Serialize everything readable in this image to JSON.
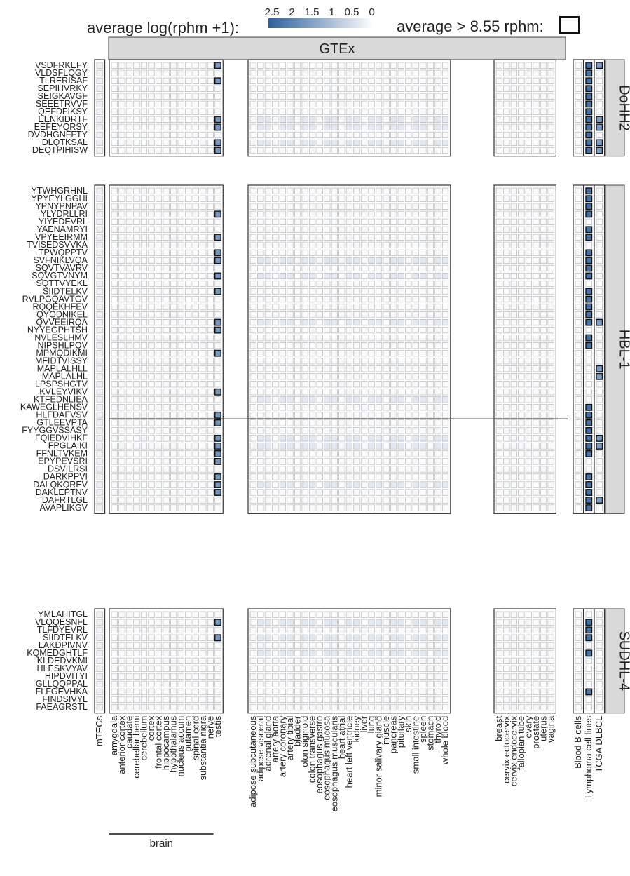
{
  "chart_data": {
    "type": "heatmap",
    "legend": {
      "title": "average  log(rphm +1):",
      "ticks": [
        "2.5",
        "2",
        "1.5",
        "1",
        "0.5",
        "0"
      ],
      "scale_min": 0,
      "scale_max": 2.6,
      "color_low": "#ffffff",
      "color_high": "#2e5f9c",
      "threshold_label": "average > 8.55 rphm:"
    },
    "strip_top": "GTEx",
    "brain_label": "brain",
    "column_groups": [
      {
        "key": "mtec",
        "columns": [
          "mTECs"
        ]
      },
      {
        "key": "brain",
        "columns": [
          "amygdala",
          "anterior cortex",
          "caudate",
          "cerebellar hemi",
          "cerebellum",
          "cortex",
          "frontal cortex",
          "hippocampus",
          "hypothalamus",
          "nucleus accum",
          "putamen",
          "spinal cord",
          "substantia nigra",
          "nerve",
          "testis"
        ]
      },
      {
        "key": "tissue",
        "columns": [
          "adipose subcutaneous",
          "adipose visceral",
          "adrenal gland",
          "artery aorta",
          "artery coronary",
          "artery tibial",
          "bladder",
          "olon sigmoid",
          "colon transverse",
          "eosophagus gastro",
          "eosophagus mucosa",
          "eosophagus muscularis",
          "heart atrial",
          "heart left ventricle",
          "kidney",
          "liver",
          "lung",
          "minor salivary gland",
          "muscle",
          "pancreas",
          "pituitary",
          "skin",
          "small intestine",
          "spleen",
          "stomach",
          "thyroid",
          "whole blood"
        ]
      },
      {
        "key": "female",
        "columns": [
          "breast",
          "cervix ectocervix",
          "cervix endocervix",
          "fallopian tube",
          "ovary",
          "prostate",
          "uterus",
          "vagina"
        ]
      },
      {
        "key": "blood",
        "columns": [
          "Blood B cells"
        ]
      },
      {
        "key": "lines",
        "columns": [
          "Lymphoma cell lines"
        ]
      },
      {
        "key": "tcga",
        "columns": [
          "TCGA DLBCL"
        ]
      }
    ],
    "row_groups": [
      {
        "label": "DoHH2",
        "rows": [
          "VSDFRKEFY",
          "VLDSFLQGY",
          "TLRERISAF",
          "SEPIHVRKY",
          "SEIGKAVGF",
          "SEEETRVVF",
          "QEFDFIKSY",
          "EENKIDRTF",
          "EEFEYQRSY",
          "DVDHGNFFTY",
          "DLQTKSAL",
          "DEQTPIHISW"
        ],
        "testis_high": [
          "VSDFRKEFY",
          "TLRERISAF",
          "EENKIDRTF",
          "EEFEYQRSY",
          "DLQTKSAL",
          "DEQTPIHISW"
        ],
        "lines_high": [
          "VSDFRKEFY",
          "VLDSFLQGY",
          "TLRERISAF",
          "SEPIHVRKY",
          "SEIGKAVGF",
          "SEEETRVVF",
          "QEFDFIKSY",
          "EENKIDRTF",
          "EEFEYQRSY",
          "DVDHGNFFTY",
          "DLQTKSAL",
          "DEQTPIHISW"
        ],
        "tcga_high": [
          "VSDFRKEFY",
          "EENKIDRTF",
          "EEFEYQRSY",
          "DLQTKSAL",
          "DEQTPIHISW"
        ],
        "tissue_mid": [
          "EENKIDRTF",
          "EEFEYQRSY",
          "DLQTKSAL"
        ]
      },
      {
        "label": "HBL-1",
        "rows": [
          "YTWHGRHNL",
          "YPYEYLGGHI",
          "YPNYPNPAV",
          "YLYDRLLRI",
          "YIYEDEVRL",
          "YAENAMRYI",
          "VPYEEIRMM",
          "TVISEDSVVKA",
          "TPWQPPTV",
          "SVFNIKLVQA",
          "SQVTVAVRV",
          "SQVGTVNYM",
          "SQTTVYEKL",
          "SIIDTELKV",
          "RVLPGQAVTGV",
          "RQQEKHFEV",
          "QYQDNIKEL",
          "QVVEEIRQA",
          "NYYEGPHTSH",
          "NVLESLHMV",
          "NIPSHLPQV",
          "MPMQDIKMI",
          "MFIDTVISSY",
          "MAPLALHLL",
          "MAPLALHL",
          "LPSPSHGTV",
          "KVLEYVIKV",
          "KTFEDNLIEA",
          "KAWEGLHENSV",
          "HLFDAFVSV",
          "GTLEEVPTA",
          "FYYGGVSSASY",
          "FQIEDVIHKF",
          "FPGLAIKI",
          "FFNLTVKEM",
          "EPYPEVSRI",
          "DSVILRSI",
          "DARKPPVI",
          "DALQKQREV",
          "DAKLEPTNV",
          "DAFRTLGL",
          "AVAPLIKGV"
        ],
        "testis_high": [
          "YLYDRLLRI",
          "VPYEEIRMM",
          "TPWQPPTV",
          "SVFNIKLVQA",
          "SQVGTVNYM",
          "SIIDTELKV",
          "QVVEEIRQA",
          "NYYEGPHTSH",
          "MPMQDIKMI",
          "KVLEYVIKV",
          "HLFDAFVSV",
          "GTLEEVPTA",
          "FQIEDVIHKF",
          "FPGLAIKI",
          "FFNLTVKEM",
          "EPYPEVSRI",
          "DARKPPVI",
          "DALQKQREV",
          "DAKLEPTNV"
        ],
        "lines_high": [
          "YTWHGRHNL",
          "YPYEYLGGHI",
          "YPNYPNPAV",
          "YLYDRLLRI",
          "YAENAMRYI",
          "VPYEEIRMM",
          "TPWQPPTV",
          "SVFNIKLVQA",
          "SQVTVAVRV",
          "SQVGTVNYM",
          "SIIDTELKV",
          "RVLPGQAVTGV",
          "RQQEKHFEV",
          "QYQDNIKEL",
          "QVVEEIRQA",
          "NVLESLHMV",
          "NIPSHLPQV",
          "KAWEGLHENSV",
          "HLFDAFVSV",
          "GTLEEVPTA",
          "FYYGGVSSASY",
          "FQIEDVIHKF",
          "FPGLAIKI",
          "FFNLTVKEM",
          "DARKPPVI",
          "DALQKQREV",
          "DAKLEPTNV",
          "DAFRTLGL",
          "AVAPLIKGV"
        ],
        "tcga_high": [
          "QVVEEIRQA",
          "MAPLALHLL",
          "MAPLALHL",
          "FQIEDVIHKF",
          "FPGLAIKI",
          "DAFRTLGL"
        ],
        "tissue_mid": [
          "SVFNIKLVQA",
          "SQVGTVNYM",
          "QVVEEIRQA",
          "KTFEDNLIEA",
          "FQIEDVIHKF",
          "FPGLAIKI",
          "DALQKQREV"
        ]
      },
      {
        "label": "SUDHL-4",
        "rows": [
          "YMLAHITGL",
          "VLQQESNFL",
          "TLFDYEVRL",
          "SIIDTELKV",
          "LAKDPIVNV",
          "KQMEDGHTLF",
          "KLDEDVKMI",
          "HLESKVYAV",
          "HIPDVITYI",
          "GLLQQPPAL",
          "FLFGEVHKA",
          "FINDSIVYL",
          "FAEAGRSTL"
        ],
        "testis_high": [
          "VLQQESNFL",
          "SIIDTELKV"
        ],
        "lines_high": [
          "VLQQESNFL",
          "TLFDYEVRL",
          "SIIDTELKV",
          "KQMEDGHTLF",
          "FLFGEVHKA"
        ],
        "tcga_high": [],
        "tissue_mid": [
          "VLQQESNFL",
          "SIIDTELKV",
          "KQMEDGHTLF"
        ]
      }
    ],
    "value_levels": {
      "background": 0.08,
      "mid": 0.5,
      "high_testis": 1.7,
      "high_lines": 2.3,
      "high_tcga": 1.6
    },
    "threshold_cells": "high cells exceed 8.55 rphm"
  }
}
